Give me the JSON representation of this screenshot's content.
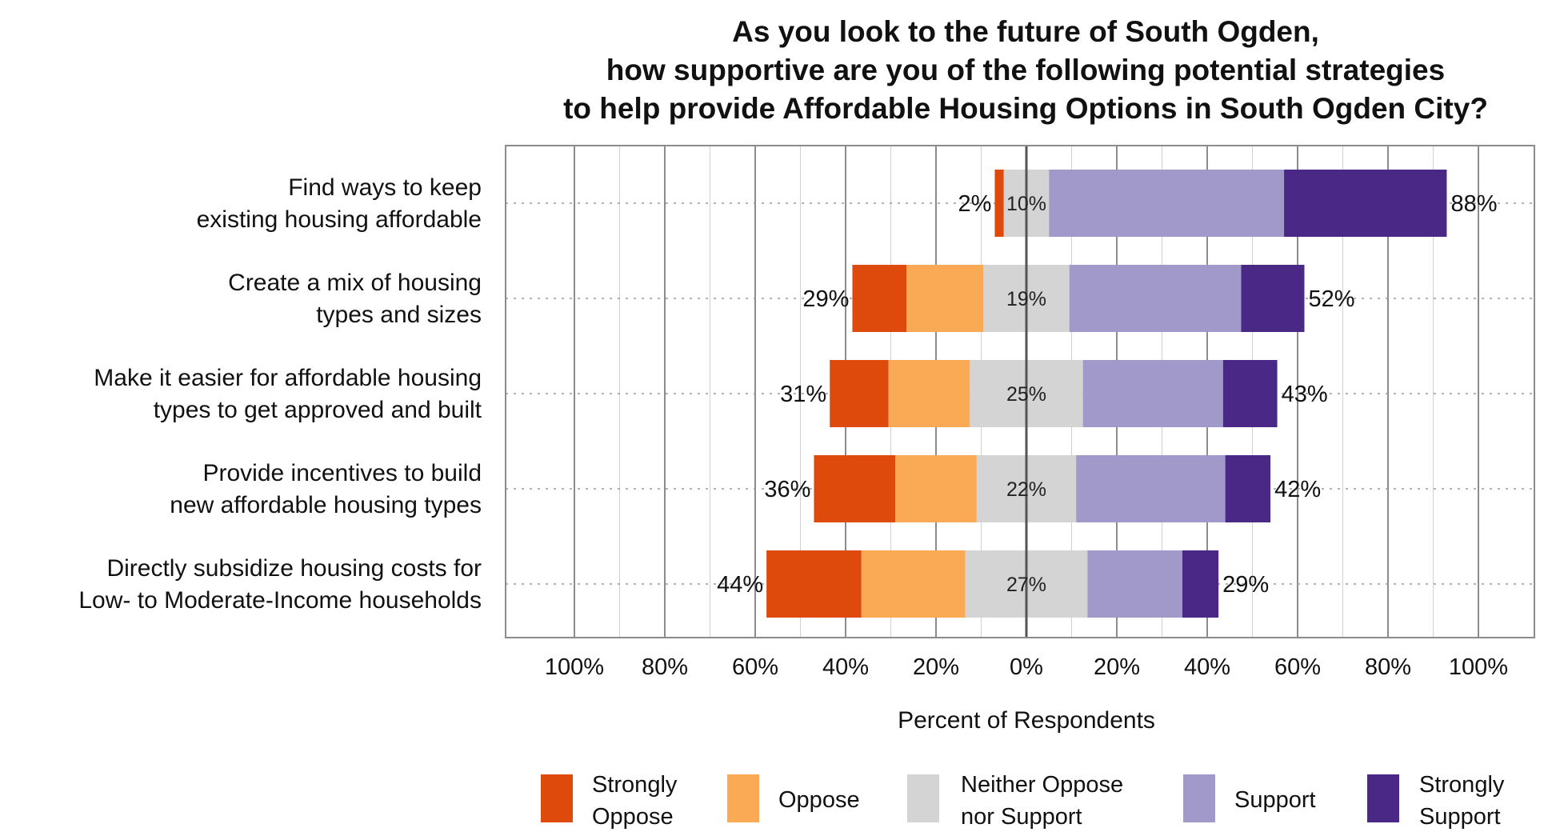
{
  "chart_data": {
    "type": "bar",
    "subtype": "diverging-stacked-horizontal",
    "title": [
      "As you look to the future of South Ogden,",
      "how supportive are you of the following potential strategies",
      "to help provide Affordable Housing Options in South Ogden City?"
    ],
    "xlabel": "Percent of Respondents",
    "xlim": [
      -100,
      100
    ],
    "xticks": [
      -100,
      -80,
      -60,
      -40,
      -20,
      0,
      20,
      40,
      60,
      80,
      100
    ],
    "xtick_labels": [
      "100%",
      "80%",
      "60%",
      "40%",
      "20%",
      "0%",
      "20%",
      "40%",
      "60%",
      "80%",
      "100%"
    ],
    "categories": [
      [
        "Find ways to keep",
        "existing housing affordable"
      ],
      [
        "Create a mix of housing",
        "types and sizes"
      ],
      [
        "Make it easier for affordable housing",
        "types to get approved and built"
      ],
      [
        "Provide incentives to build",
        "new affordable housing types"
      ],
      [
        "Directly subsidize housing costs for",
        "Low- to Moderate-Income households"
      ]
    ],
    "series": [
      {
        "name": "Strongly Oppose",
        "color": "#dd4a0b",
        "values": [
          2,
          12,
          13,
          18,
          21
        ]
      },
      {
        "name": "Oppose",
        "color": "#faa954",
        "values": [
          0,
          17,
          18,
          18,
          23
        ]
      },
      {
        "name": "Neither Oppose nor Support",
        "color": "#d4d4d4",
        "values": [
          10,
          19,
          25,
          22,
          27
        ]
      },
      {
        "name": "Support",
        "color": "#a199ca",
        "values": [
          52,
          38,
          31,
          33,
          21
        ]
      },
      {
        "name": "Strongly Support",
        "color": "#4a2886",
        "values": [
          36,
          14,
          12,
          10,
          8
        ]
      }
    ],
    "totals": {
      "oppose_labels": [
        "2%",
        "29%",
        "31%",
        "36%",
        "44%"
      ],
      "neutral_labels": [
        "10%",
        "19%",
        "25%",
        "22%",
        "27%"
      ],
      "support_labels": [
        "88%",
        "52%",
        "43%",
        "42%",
        "29%"
      ]
    },
    "legend": {
      "position": "bottom",
      "entries": [
        {
          "lines": [
            "Strongly",
            "Oppose"
          ],
          "color": "#dd4a0b"
        },
        {
          "lines": [
            "Oppose"
          ],
          "color": "#faa954"
        },
        {
          "lines": [
            "Neither Oppose",
            "nor Support"
          ],
          "color": "#d4d4d4"
        },
        {
          "lines": [
            "Support"
          ],
          "color": "#a199ca"
        },
        {
          "lines": [
            "Strongly",
            "Support"
          ],
          "color": "#4a2886"
        }
      ]
    },
    "grid": true
  }
}
